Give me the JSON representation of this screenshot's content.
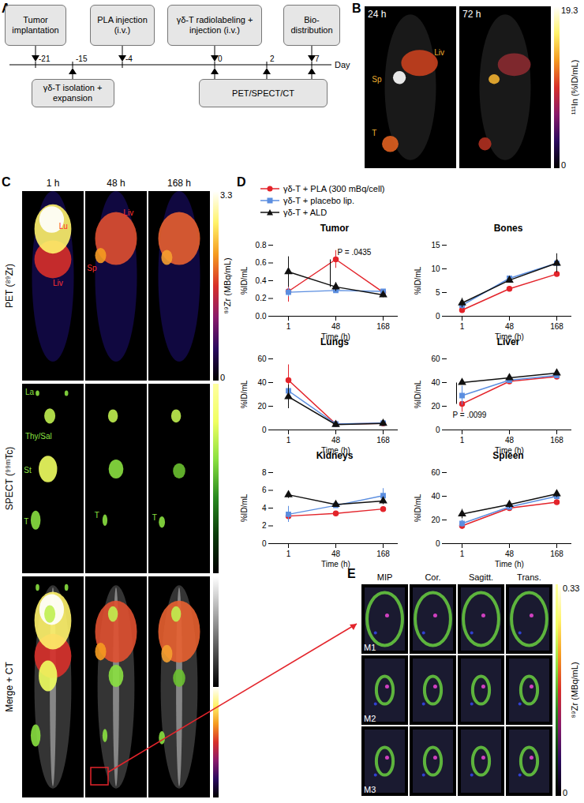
{
  "figure": {
    "panel_a": {
      "letter": "A",
      "ticks": [
        -21,
        -15,
        -4,
        0,
        2,
        7
      ],
      "axis_label": "Day",
      "events_above": [
        {
          "day": -21,
          "label": "Tumor implantation"
        },
        {
          "day": -4,
          "label": "PLA injection (i.v.)"
        },
        {
          "day": 0,
          "label": "γδ-T radiolabeling + injection (i.v.)"
        },
        {
          "day": 7,
          "label": "Bio-distribution"
        }
      ],
      "events_below": [
        {
          "days": [
            -15
          ],
          "label": "γδ-T isolation + expansion"
        },
        {
          "days": [
            0,
            2,
            7
          ],
          "label": "PET/SPECT/CT"
        }
      ]
    },
    "panel_b": {
      "letter": "B",
      "images": [
        {
          "label": "24 h",
          "annotations": [
            "Sp",
            "Liv",
            "T"
          ]
        },
        {
          "label": "72 h",
          "annotations": []
        }
      ],
      "colorbar": {
        "min": 0,
        "max": 19.3,
        "label": "¹¹¹In (%ID/mL)"
      }
    },
    "panel_c": {
      "letter": "C",
      "columns": [
        "1 h",
        "48 h",
        "168 h"
      ],
      "rows": [
        {
          "label": "PET (⁸⁹Zr)",
          "annotations": [
            [
              "Lu",
              "Liv"
            ],
            [
              "Liv",
              "Sp"
            ],
            []
          ]
        },
        {
          "label": "SPECT (⁹⁹ᵐTc)",
          "annotations": [
            [
              "La",
              "Thy/Sal",
              "St",
              "T"
            ],
            [
              "T"
            ],
            [
              "T"
            ]
          ]
        },
        {
          "label": "Merge + CT",
          "annotations": [
            [],
            [],
            []
          ]
        }
      ],
      "colorbar": {
        "min": 0,
        "max": 3.3,
        "label": "⁸⁹Zr (MBq/mL)"
      }
    },
    "panel_d": {
      "letter": "D"
    },
    "panel_e": {
      "letter": "E",
      "columns": [
        "MIP",
        "Cor.",
        "Sagitt.",
        "Trans."
      ],
      "rows": [
        "M1",
        "M2",
        "M3"
      ],
      "colorbar": {
        "min": 0,
        "max": 0.33,
        "label": "⁸⁹Zr (MBq/mL)"
      }
    }
  },
  "chart_data": [
    {
      "type": "line",
      "title": "Tumor",
      "x": [
        "1",
        "48",
        "168"
      ],
      "x_label": "Time (h)",
      "y_label": "%ID/mL",
      "ylim": [
        0,
        0.8
      ],
      "yticks": [
        {
          "value": 0,
          "label": "0.0"
        },
        {
          "value": 0.2,
          "label": "0.2"
        },
        {
          "value": 0.4,
          "label": "0.4"
        },
        {
          "value": 0.6,
          "label": "0.6"
        },
        {
          "value": 0.8,
          "label": "0.8"
        }
      ],
      "legend": "top",
      "series": [
        {
          "name": "γδ-T + PLA (300 mBq/cell)",
          "color": "#e3242b",
          "marker": "circle",
          "values": [
            0.28,
            0.64,
            0.27
          ],
          "errors": [
            0.12,
            0.1,
            0.03
          ]
        },
        {
          "name": "γδ-T + placebo lip.",
          "color": "#5b8ee0",
          "marker": "square",
          "values": [
            0.27,
            0.29,
            0.28
          ],
          "errors": [
            0.05,
            0.03,
            0.02
          ]
        },
        {
          "name": "γδ-T + ALD",
          "color": "#111111",
          "marker": "triangle",
          "values": [
            0.5,
            0.33,
            0.24
          ],
          "errors": [
            0.17,
            0.05,
            0.03
          ]
        }
      ],
      "annotations": [
        {
          "text": "P = .0435",
          "x": "48",
          "between": [
            "γδ-T + PLA (300 mBq/cell)",
            "γδ-T + ALD"
          ]
        }
      ]
    },
    {
      "type": "line",
      "title": "Bones",
      "x": [
        "1",
        "48",
        "168"
      ],
      "x_label": "Time (h)",
      "y_label": "%ID/mL",
      "ylim": [
        0,
        15
      ],
      "yticks": [
        0,
        5,
        10,
        15
      ],
      "series": [
        {
          "name": "γδ-T + PLA (300 mBq/cell)",
          "color": "#e3242b",
          "marker": "circle",
          "values": [
            1.3,
            5.8,
            8.9
          ],
          "errors": [
            0.5,
            0.5,
            0.5
          ]
        },
        {
          "name": "γδ-T + placebo lip.",
          "color": "#5b8ee0",
          "marker": "square",
          "values": [
            2.3,
            8.0,
            11.2
          ],
          "errors": [
            0.8,
            0.5,
            0.8
          ]
        },
        {
          "name": "γδ-T + ALD",
          "color": "#111111",
          "marker": "triangle",
          "values": [
            2.8,
            7.6,
            11.2
          ],
          "errors": [
            1.0,
            0.5,
            2.0
          ]
        }
      ],
      "annotations": []
    },
    {
      "type": "line",
      "title": "Lungs",
      "x": [
        "1",
        "48",
        "168"
      ],
      "x_label": "Time (h)",
      "y_label": "%ID/mL",
      "ylim": [
        0,
        60
      ],
      "yticks": [
        0,
        20,
        40,
        60
      ],
      "series": [
        {
          "name": "γδ-T + PLA (300 mBq/cell)",
          "color": "#e3242b",
          "marker": "circle",
          "values": [
            42,
            5,
            5.5
          ],
          "errors": [
            13,
            0.5,
            0.5
          ]
        },
        {
          "name": "γδ-T + placebo lip.",
          "color": "#5b8ee0",
          "marker": "square",
          "values": [
            33,
            5,
            5.8
          ],
          "errors": [
            5,
            0.5,
            0.5
          ]
        },
        {
          "name": "γδ-T + ALD",
          "color": "#111111",
          "marker": "triangle",
          "values": [
            28,
            4.5,
            5.5
          ],
          "errors": [
            10,
            0.5,
            0.5
          ]
        }
      ],
      "annotations": []
    },
    {
      "type": "line",
      "title": "Liver",
      "x": [
        "1",
        "48",
        "168"
      ],
      "x_label": "Time (h)",
      "y_label": "%ID/mL",
      "ylim": [
        0,
        60
      ],
      "yticks": [
        0,
        20,
        40,
        60
      ],
      "series": [
        {
          "name": "γδ-T + PLA (300 mBq/cell)",
          "color": "#e3242b",
          "marker": "circle",
          "values": [
            22,
            41,
            45
          ],
          "errors": [
            7,
            2,
            2
          ]
        },
        {
          "name": "γδ-T + placebo lip.",
          "color": "#5b8ee0",
          "marker": "square",
          "values": [
            29,
            42,
            46
          ],
          "errors": [
            8,
            2,
            2
          ]
        },
        {
          "name": "γδ-T + ALD",
          "color": "#111111",
          "marker": "triangle",
          "values": [
            40,
            44,
            48
          ],
          "errors": [
            2,
            2,
            2
          ]
        }
      ],
      "annotations": [
        {
          "text": "P = .0099",
          "x": "1",
          "between": [
            "γδ-T + PLA (300 mBq/cell)",
            "γδ-T + ALD"
          ]
        }
      ]
    },
    {
      "type": "line",
      "title": "Kidneys",
      "x": [
        "1",
        "48",
        "168"
      ],
      "x_label": "Time (h)",
      "y_label": "%ID/mL",
      "ylim": [
        0,
        8
      ],
      "yticks": [
        0,
        2,
        4,
        6,
        8
      ],
      "series": [
        {
          "name": "γδ-T + PLA (300 mBq/cell)",
          "color": "#e3242b",
          "marker": "circle",
          "values": [
            3.1,
            3.4,
            3.9
          ],
          "errors": [
            0.5,
            0.2,
            0.2
          ]
        },
        {
          "name": "γδ-T + placebo lip.",
          "color": "#5b8ee0",
          "marker": "square",
          "values": [
            3.3,
            4.3,
            5.4
          ],
          "errors": [
            0.9,
            0.2,
            0.8
          ]
        },
        {
          "name": "γδ-T + ALD",
          "color": "#111111",
          "marker": "triangle",
          "values": [
            5.5,
            4.4,
            4.8
          ],
          "errors": [
            0.4,
            0.2,
            0.4
          ]
        }
      ],
      "annotations": []
    },
    {
      "type": "line",
      "title": "Spleen",
      "x": [
        "1",
        "48",
        "168"
      ],
      "x_label": "Time (h)",
      "y_label": "%ID/mL",
      "ylim": [
        0,
        60
      ],
      "yticks": [
        0,
        20,
        40,
        60
      ],
      "series": [
        {
          "name": "γδ-T + PLA (300 mBq/cell)",
          "color": "#e3242b",
          "marker": "circle",
          "values": [
            15,
            30,
            35
          ],
          "errors": [
            3,
            2,
            2
          ]
        },
        {
          "name": "γδ-T + placebo lip.",
          "color": "#5b8ee0",
          "marker": "square",
          "values": [
            17,
            31,
            40
          ],
          "errors": [
            3,
            2,
            3
          ]
        },
        {
          "name": "γδ-T + ALD",
          "color": "#111111",
          "marker": "triangle",
          "values": [
            25,
            33,
            42
          ],
          "errors": [
            4,
            3,
            3
          ]
        }
      ],
      "annotations": []
    }
  ]
}
